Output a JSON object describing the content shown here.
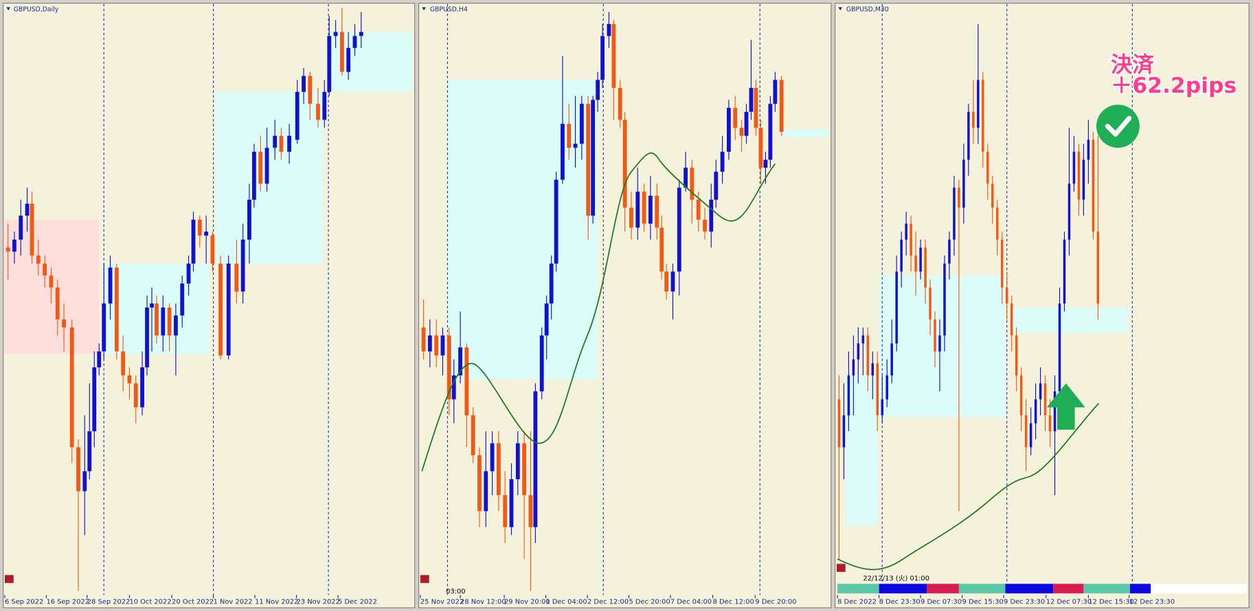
{
  "panels": [
    {
      "title": "GBPUSD,Daily",
      "time_labels": [
        "6 Sep 2022",
        "16 Sep 2022",
        "28 Sep 2022",
        "10 Oct 2022",
        "20 Oct 2022",
        "1 Nov 2022",
        "11 Nov 2022",
        "23 Nov 2022",
        "5 Dec 2022"
      ]
    },
    {
      "title": "GBPUSD,H4",
      "cursor_time": "03:00",
      "time_labels": [
        "25 Nov 2022",
        "28 Nov 12:00",
        "29 Nov 20:00",
        "1 Dec 04:00",
        "2 Dec 12:00",
        "5 Dec 20:00",
        "7 Dec 04:00",
        "8 Dec 12:00",
        "9 Dec 20:00"
      ]
    },
    {
      "title": "GBPUSD,M30",
      "cursor_time": "22/12/13 (火) 01:00",
      "time_labels": [
        "8 Dec 2022",
        "8 Dec 23:30",
        "9 Dec 07:30",
        "9 Dec 15:30",
        "9 Dec 23:30",
        "12 Dec 07:30",
        "12 Dec 15:30",
        "12 Dec 23:30"
      ]
    }
  ],
  "annotation": {
    "label": "決済",
    "result": "＋62.2pips"
  }
}
